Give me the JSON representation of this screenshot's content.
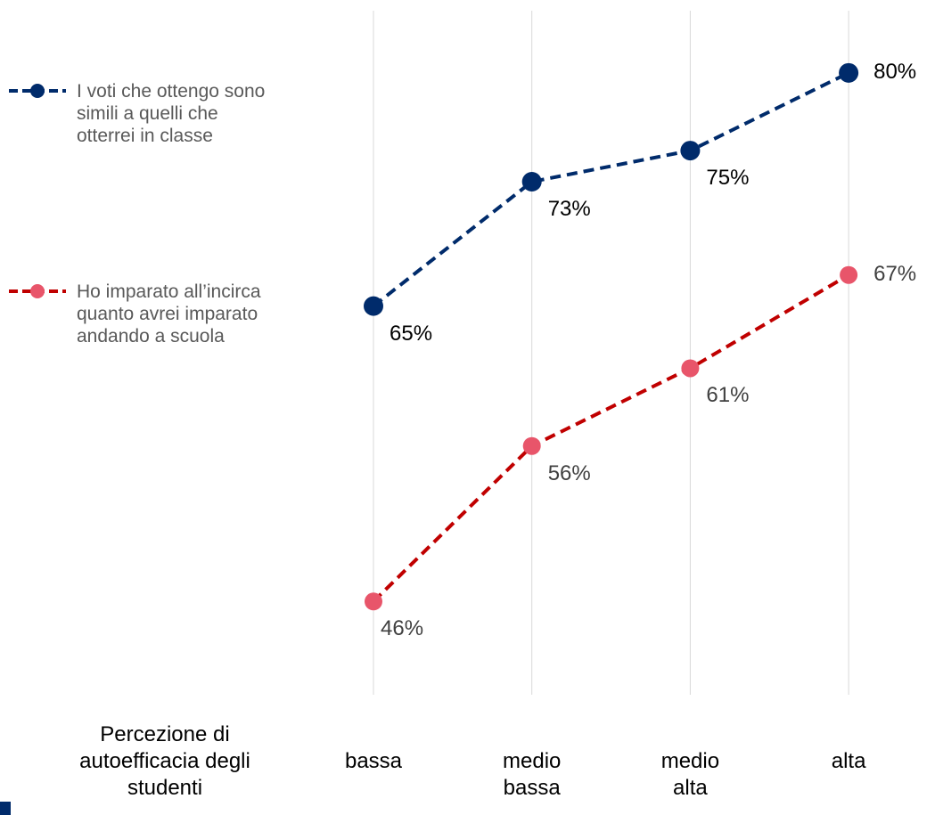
{
  "chart_data": {
    "type": "line",
    "x_label": "Percezione di autoefficacia degli studenti",
    "categories": [
      "bassa",
      "medio bassa",
      "medio alta",
      "alta"
    ],
    "series": [
      {
        "name": "I voti che ottengo sono simili a quelli che otterrei in classe",
        "color": "#002b6b",
        "values": [
          65,
          73,
          75,
          80
        ],
        "value_labels": [
          "65%",
          "73%",
          "75%",
          "80%"
        ]
      },
      {
        "name": "Ho imparato all’incirca quanto avrei imparato andando a scuola",
        "color": "#c00000",
        "marker_color": "#e8556a",
        "values": [
          46,
          56,
          61,
          67
        ],
        "value_labels": [
          "46%",
          "56%",
          "61%",
          "67%"
        ]
      }
    ],
    "ylim": [
      40,
      84
    ],
    "grid": true
  }
}
